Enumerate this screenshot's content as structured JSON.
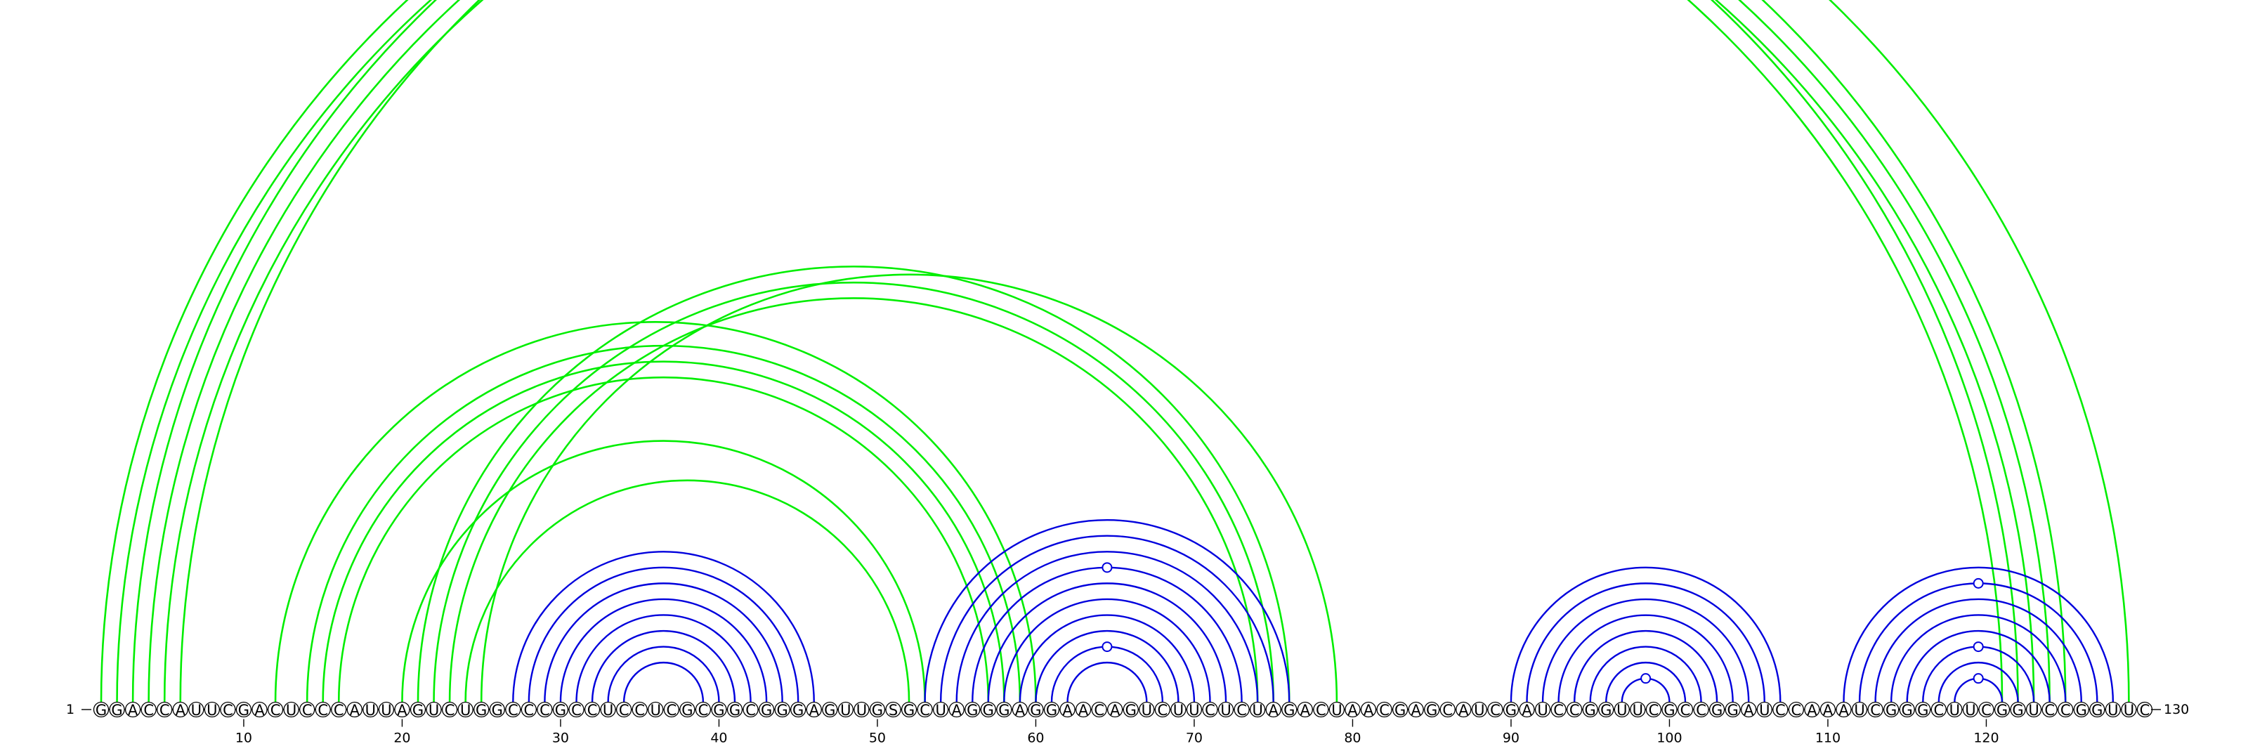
{
  "sequence": "GGACCAUUCGACUCCCAUUAGUCUGGCCCGCCUCCUCGCGGCGGGAGUUGSGCUAGGGAGGAACAGUCUUCUCUAGACUAACGAGCAUCGAUCCGGUUCGCCGGAUCCAAAUCGGGCUUCGGUCCGGUUC",
  "start_label": "1",
  "end_label": "130",
  "tick_labels": [
    "10",
    "20",
    "30",
    "40",
    "50",
    "60",
    "70",
    "80",
    "90",
    "100",
    "110",
    "120"
  ],
  "colors": {
    "green_arc": "#00ee00",
    "blue_arc": "#0000dd",
    "nucleotide_outline": "#000000"
  },
  "arc_groups": [
    {
      "name": "long-range-helix",
      "color": "green",
      "pairs": [
        [
          1,
          122
        ],
        [
          2,
          121
        ],
        [
          3,
          125
        ],
        [
          4,
          124
        ],
        [
          5,
          123
        ],
        [
          6,
          129
        ]
      ],
      "marker_on": 6
    },
    {
      "name": "helix-12-60",
      "color": "green",
      "pairs": [
        [
          12,
          60
        ],
        [
          14,
          59
        ],
        [
          15,
          58
        ],
        [
          16,
          57
        ]
      ]
    },
    {
      "name": "helix-21-76",
      "color": "green",
      "pairs": [
        [
          21,
          76
        ],
        [
          22,
          75
        ],
        [
          23,
          74
        ],
        [
          25,
          79
        ]
      ]
    },
    {
      "name": "helix-20-53",
      "color": "green",
      "pairs": [
        [
          20,
          53
        ],
        [
          24,
          52
        ]
      ]
    },
    {
      "name": "hairpin-27-46",
      "color": "blue",
      "pairs": [
        [
          27,
          46
        ],
        [
          28,
          45
        ],
        [
          29,
          44
        ],
        [
          30,
          43
        ],
        [
          31,
          42
        ],
        [
          32,
          41
        ],
        [
          33,
          40
        ],
        [
          34,
          39
        ]
      ]
    },
    {
      "name": "helix-53-76",
      "color": "blue",
      "pairs": [
        [
          53,
          76
        ],
        [
          54,
          75
        ],
        [
          55,
          74
        ],
        [
          56,
          73
        ],
        [
          57,
          72
        ],
        [
          58,
          71
        ],
        [
          59,
          70
        ],
        [
          60,
          69
        ],
        [
          61,
          68
        ],
        [
          62,
          67
        ]
      ],
      "markers_on": [
        4,
        9
      ]
    },
    {
      "name": "hairpin-90-107",
      "color": "blue",
      "pairs": [
        [
          90,
          107
        ],
        [
          91,
          106
        ],
        [
          92,
          105
        ],
        [
          93,
          104
        ],
        [
          94,
          103
        ],
        [
          95,
          102
        ],
        [
          96,
          101
        ],
        [
          97,
          100
        ]
      ],
      "markers_on": [
        8
      ]
    },
    {
      "name": "hairpin-111-128",
      "color": "blue",
      "pairs": [
        [
          111,
          128
        ],
        [
          112,
          127
        ],
        [
          113,
          126
        ],
        [
          114,
          125
        ],
        [
          115,
          124
        ],
        [
          116,
          123
        ],
        [
          117,
          122
        ],
        [
          118,
          121
        ]
      ],
      "markers_on": [
        2,
        6,
        8
      ]
    }
  ]
}
